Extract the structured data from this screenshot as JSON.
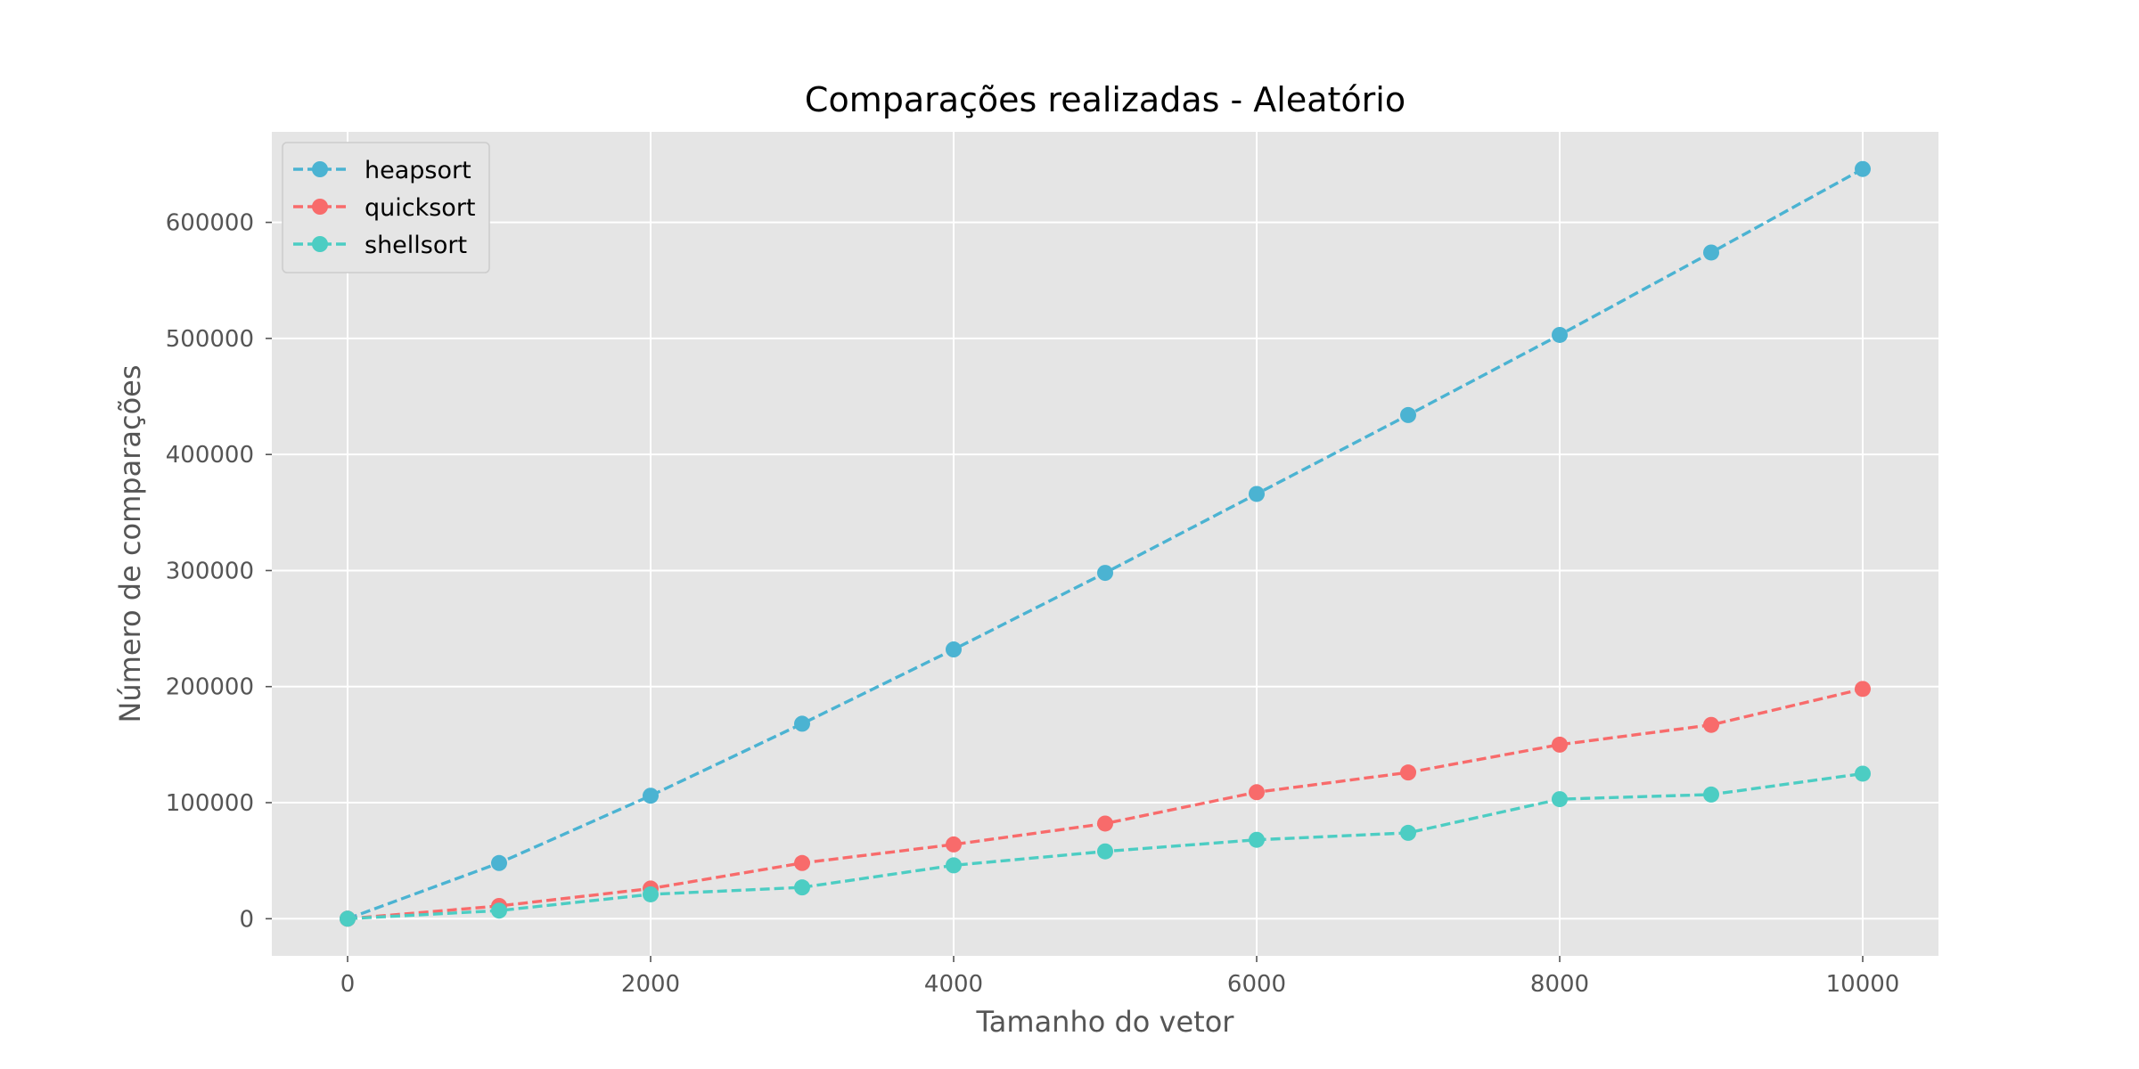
{
  "chart_data": {
    "type": "line",
    "title": "Comparações realizadas - Aleatório",
    "xlabel": "Tamanho do vetor",
    "ylabel": "Número de comparações",
    "xlim": [
      -500,
      10500
    ],
    "ylim": [
      -32000,
      678000
    ],
    "x_ticks": [
      0,
      2000,
      4000,
      6000,
      8000,
      10000
    ],
    "y_ticks": [
      0,
      100000,
      200000,
      300000,
      400000,
      500000,
      600000
    ],
    "grid": true,
    "legend_position": "top-left",
    "x": [
      0,
      1000,
      2000,
      3000,
      4000,
      5000,
      6000,
      7000,
      8000,
      9000,
      10000
    ],
    "series": [
      {
        "name": "heapsort",
        "color": "#4bb3d2",
        "values": [
          0,
          48000,
          106000,
          168000,
          232000,
          298000,
          366000,
          434000,
          503000,
          574000,
          646000
        ]
      },
      {
        "name": "quicksort",
        "color": "#f86b6b",
        "values": [
          0,
          11000,
          26000,
          48000,
          64000,
          82000,
          109000,
          126000,
          150000,
          167000,
          198000
        ]
      },
      {
        "name": "shellsort",
        "color": "#4ccdc3",
        "values": [
          0,
          7000,
          21000,
          27000,
          46000,
          58000,
          68000,
          74000,
          103000,
          107000,
          125000
        ]
      }
    ]
  },
  "colors": {
    "plot_background": "#e5e5e5",
    "grid": "#ffffff"
  }
}
